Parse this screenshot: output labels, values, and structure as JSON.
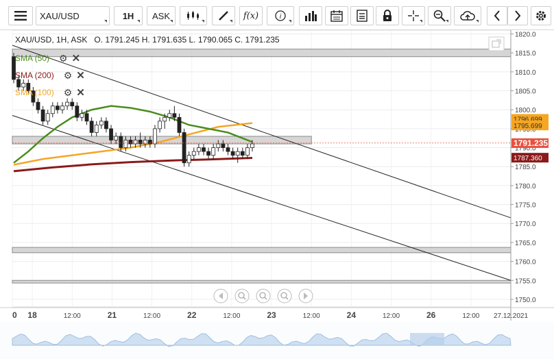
{
  "toolbar": {
    "menu_icon": "hamburger-icon",
    "symbol": "XAU/USD",
    "timeframe": "1H",
    "price_type": "ASK",
    "buttons": [
      "candlestick-icon",
      "draw-pencil-icon",
      "function-icon",
      "info-icon",
      "bar-chart-icon",
      "calendar-icon",
      "report-icon",
      "lock-icon",
      "crosshair-icon",
      "zoom-icon",
      "cloud-upload-icon",
      "arrow-left-icon",
      "arrow-right-icon"
    ],
    "fx_label": "f(x)"
  },
  "header": {
    "ohlc": "XAU/USD, 1H, ASK   O. 1791.245 H. 1791.635 L. 1790.065 C. 1791.235"
  },
  "legend": [
    {
      "label": "SMA (50)",
      "color": "#4a8c1c"
    },
    {
      "label": "SMA (200)",
      "color": "#8b1a1a"
    },
    {
      "label": "SMA (100)",
      "color": "#f5a623"
    }
  ],
  "chart_data": {
    "type": "candlestick",
    "y_ticks": [
      1750,
      1755,
      1760,
      1765,
      1770,
      1775,
      1780,
      1785,
      1790,
      1795,
      1800,
      1805,
      1810,
      1815,
      1820
    ],
    "ylim": [
      1748,
      1821
    ],
    "x_ticks": [
      {
        "label": "0",
        "t": 0
      },
      {
        "label": "18",
        "t": 6
      },
      {
        "label": "12:00",
        "t": 18
      },
      {
        "label": "21",
        "t": 30
      },
      {
        "label": "12:00",
        "t": 42
      },
      {
        "label": "22",
        "t": 54
      },
      {
        "label": "12:00",
        "t": 66
      },
      {
        "label": "23",
        "t": 78
      },
      {
        "label": "12:00",
        "t": 90
      },
      {
        "label": "24",
        "t": 102
      },
      {
        "label": "12:00",
        "t": 114
      },
      {
        "label": "26",
        "t": 126
      },
      {
        "label": "12:00",
        "t": 138
      },
      {
        "label": "27.12.2021",
        "t": 150
      }
    ],
    "xlim": [
      0,
      150
    ],
    "candles": [
      [
        0,
        1814,
        1815,
        1807,
        1808
      ],
      [
        1,
        1808,
        1809,
        1805,
        1806
      ],
      [
        2,
        1806,
        1808,
        1805,
        1807
      ],
      [
        3,
        1807,
        1808,
        1804,
        1805
      ],
      [
        4,
        1805,
        1806,
        1801,
        1802
      ],
      [
        5,
        1802,
        1803,
        1799,
        1800
      ],
      [
        6,
        1800,
        1801,
        1796,
        1797
      ],
      [
        7,
        1797,
        1800,
        1796,
        1799
      ],
      [
        8,
        1799,
        1802,
        1798,
        1801
      ],
      [
        9,
        1801,
        1802,
        1799,
        1800
      ],
      [
        10,
        1800,
        1802,
        1799,
        1801
      ],
      [
        11,
        1801,
        1803,
        1800,
        1802
      ],
      [
        12,
        1802,
        1803,
        1800,
        1801
      ],
      [
        13,
        1801,
        1802,
        1797,
        1798
      ],
      [
        14,
        1798,
        1800,
        1797,
        1799
      ],
      [
        15,
        1799,
        1800,
        1796,
        1797
      ],
      [
        16,
        1797,
        1798,
        1793,
        1794
      ],
      [
        17,
        1794,
        1797,
        1793,
        1796
      ],
      [
        18,
        1796,
        1798,
        1795,
        1797
      ],
      [
        19,
        1797,
        1798,
        1794,
        1795
      ],
      [
        20,
        1795,
        1796,
        1791,
        1792
      ],
      [
        21,
        1792,
        1794,
        1791,
        1793
      ],
      [
        22,
        1793,
        1794,
        1789,
        1790
      ],
      [
        23,
        1790,
        1793,
        1789,
        1792
      ],
      [
        24,
        1792,
        1793,
        1790,
        1791
      ],
      [
        25,
        1791,
        1793,
        1790,
        1792
      ],
      [
        26,
        1792,
        1794,
        1790,
        1791
      ],
      [
        27,
        1791,
        1793,
        1790,
        1792
      ],
      [
        28,
        1792,
        1793,
        1790,
        1791
      ],
      [
        29,
        1791,
        1796,
        1790,
        1795
      ],
      [
        30,
        1795,
        1798,
        1794,
        1797
      ],
      [
        31,
        1797,
        1799,
        1795,
        1798
      ],
      [
        32,
        1798,
        1800,
        1797,
        1799
      ],
      [
        33,
        1799,
        1801,
        1797,
        1798
      ],
      [
        34,
        1798,
        1799,
        1793,
        1794
      ],
      [
        35,
        1794,
        1795,
        1785,
        1786
      ],
      [
        36,
        1786,
        1789,
        1785,
        1788
      ],
      [
        37,
        1788,
        1790,
        1787,
        1789
      ],
      [
        38,
        1789,
        1791,
        1788,
        1790
      ],
      [
        39,
        1790,
        1791,
        1788,
        1789
      ],
      [
        40,
        1789,
        1790,
        1787,
        1788
      ],
      [
        41,
        1788,
        1791,
        1787,
        1790
      ],
      [
        42,
        1790,
        1792,
        1789,
        1791
      ],
      [
        43,
        1791,
        1792,
        1789,
        1790
      ],
      [
        44,
        1790,
        1791,
        1788,
        1789
      ],
      [
        45,
        1789,
        1790,
        1787,
        1788
      ],
      [
        46,
        1788,
        1790,
        1786,
        1789
      ],
      [
        47,
        1789,
        1790,
        1787,
        1788
      ],
      [
        48,
        1788,
        1791,
        1787,
        1790
      ],
      [
        49,
        1790,
        1792,
        1789,
        1791
      ]
    ],
    "sma50": [
      [
        0,
        1786
      ],
      [
        3,
        1789
      ],
      [
        6,
        1792.5
      ],
      [
        9,
        1795.5
      ],
      [
        12,
        1798
      ],
      [
        16,
        1800
      ],
      [
        20,
        1801
      ],
      [
        24,
        1800.5
      ],
      [
        28,
        1799.5
      ],
      [
        32,
        1798
      ],
      [
        36,
        1796
      ],
      [
        40,
        1795
      ],
      [
        44,
        1794
      ],
      [
        49,
        1791.5
      ]
    ],
    "sma100": [
      [
        0,
        1785.5
      ],
      [
        6,
        1787
      ],
      [
        12,
        1788
      ],
      [
        18,
        1789
      ],
      [
        24,
        1790
      ],
      [
        30,
        1791.5
      ],
      [
        36,
        1793.5
      ],
      [
        42,
        1795.5
      ],
      [
        49,
        1796.5
      ]
    ],
    "sma200": [
      [
        0,
        1783.8
      ],
      [
        8,
        1784.8
      ],
      [
        16,
        1785.6
      ],
      [
        24,
        1786.2
      ],
      [
        32,
        1786.6
      ],
      [
        40,
        1786.9
      ],
      [
        49,
        1787.3
      ]
    ],
    "channel_upper": [
      [
        0,
        1817
      ],
      [
        150,
        1771.5
      ]
    ],
    "channel_lower": [
      [
        0,
        1798.5
      ],
      [
        150,
        1755
      ]
    ],
    "zones": [
      [
        1814,
        1816
      ],
      [
        1791,
        1793
      ],
      [
        1762.3,
        1763.7
      ],
      [
        1754.3,
        1755
      ]
    ],
    "price_labels": [
      {
        "label": "1796.699",
        "value": 1796.7,
        "bg": "#f5a623",
        "fg": "#333"
      },
      {
        "label": "1795.699",
        "value": 1796.4,
        "bg": "#f5a623",
        "fg": "#333"
      },
      {
        "label": "1791.235",
        "value": 1791.2,
        "bg": "#e8513f",
        "fg": "#fff"
      },
      {
        "label": "1787.360",
        "value": 1787.36,
        "bg": "#8b1a1a",
        "fg": "#fff"
      }
    ],
    "current_price": 1791.235
  },
  "nav": [
    "arrow-left-icon",
    "zoom-out-icon",
    "reset-icon",
    "zoom-in-icon",
    "arrow-right-icon"
  ]
}
